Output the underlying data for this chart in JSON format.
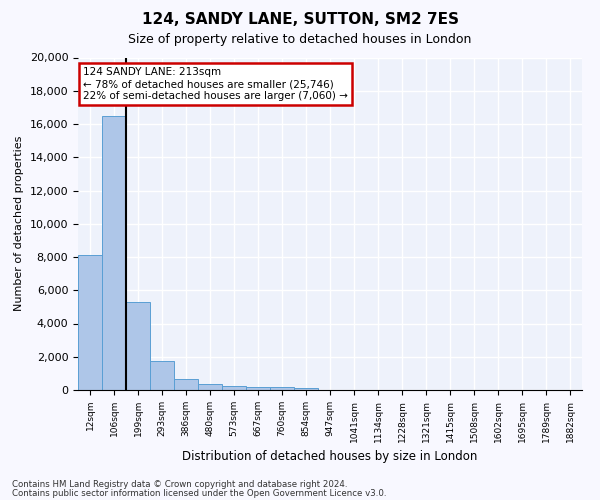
{
  "title": "124, SANDY LANE, SUTTON, SM2 7ES",
  "subtitle": "Size of property relative to detached houses in London",
  "xlabel": "Distribution of detached houses by size in London",
  "ylabel": "Number of detached properties",
  "bin_labels": [
    "12sqm",
    "106sqm",
    "199sqm",
    "293sqm",
    "386sqm",
    "480sqm",
    "573sqm",
    "667sqm",
    "760sqm",
    "854sqm",
    "947sqm",
    "1041sqm",
    "1134sqm",
    "1228sqm",
    "1321sqm",
    "1415sqm",
    "1508sqm",
    "1602sqm",
    "1695sqm",
    "1789sqm",
    "1882sqm"
  ],
  "bar_values": [
    8100,
    16500,
    5300,
    1750,
    650,
    350,
    270,
    200,
    170,
    130,
    0,
    0,
    0,
    0,
    0,
    0,
    0,
    0,
    0,
    0,
    0
  ],
  "bar_color": "#aec6e8",
  "bar_edge_color": "#5a9fd4",
  "annotation_title": "124 SANDY LANE: 213sqm",
  "annotation_line1": "← 78% of detached houses are smaller (25,746)",
  "annotation_line2": "22% of semi-detached houses are larger (7,060) →",
  "annotation_box_color": "#ffffff",
  "annotation_box_edge": "#cc0000",
  "vline_color": "#000000",
  "ylim": [
    0,
    20000
  ],
  "yticks": [
    0,
    2000,
    4000,
    6000,
    8000,
    10000,
    12000,
    14000,
    16000,
    18000,
    20000
  ],
  "footnote1": "Contains HM Land Registry data © Crown copyright and database right 2024.",
  "footnote2": "Contains public sector information licensed under the Open Government Licence v3.0.",
  "bg_color": "#eef2fb",
  "grid_color": "#ffffff",
  "fig_bg_color": "#f8f8ff"
}
